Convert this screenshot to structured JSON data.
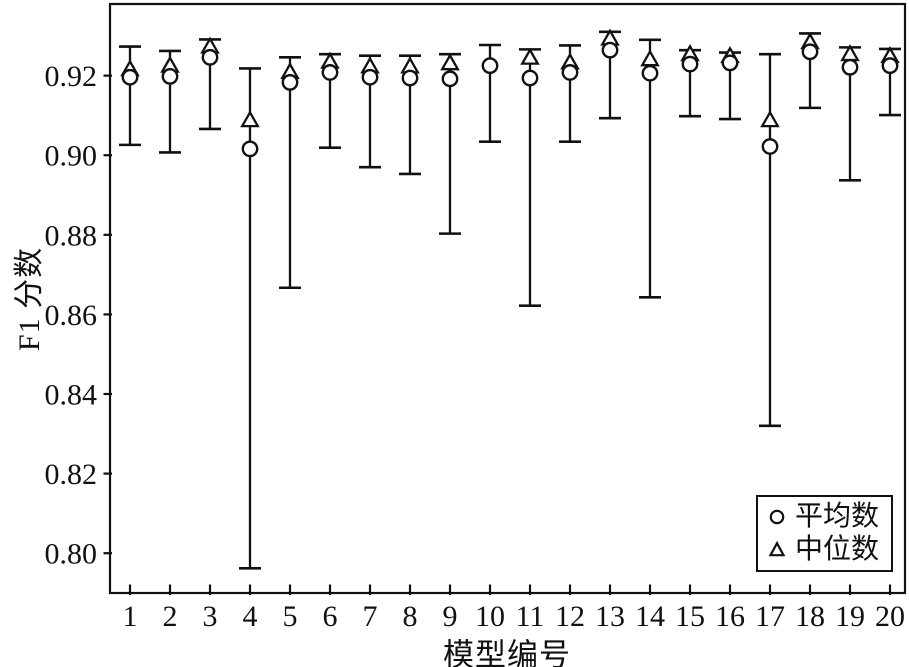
{
  "chart_data": {
    "type": "errorbar-scatter",
    "title": "",
    "xlabel": "模型编号",
    "ylabel": "F1 分数",
    "x": [
      1,
      2,
      3,
      4,
      5,
      6,
      7,
      8,
      9,
      10,
      11,
      12,
      13,
      14,
      15,
      16,
      17,
      18,
      19,
      20
    ],
    "xlim": [
      0.5,
      20.375
    ],
    "ylim": [
      0.79,
      0.938
    ],
    "yticks": [
      0.8,
      0.82,
      0.84,
      0.86,
      0.88,
      0.9,
      0.92
    ],
    "grid": false,
    "legend_position": "lower right",
    "stroke_color": "#111111",
    "background_color": "#ffffff",
    "series": [
      {
        "name": "平均数",
        "marker": "circle",
        "values": [
          0.9196,
          0.9198,
          0.9246,
          0.9016,
          0.9183,
          0.9208,
          0.9196,
          0.9194,
          0.9192,
          0.9225,
          0.9194,
          0.9208,
          0.9264,
          0.9206,
          0.9229,
          0.9232,
          0.9022,
          0.926,
          0.9221,
          0.9225
        ]
      },
      {
        "name": "中位数",
        "marker": "triangle",
        "values": [
          0.9213,
          0.9222,
          0.927,
          0.9085,
          0.9206,
          0.9232,
          0.922,
          0.922,
          0.9228,
          0.9225,
          0.9242,
          0.923,
          0.929,
          0.9238,
          0.9251,
          0.9246,
          0.9085,
          0.9281,
          0.9251,
          0.9246
        ]
      }
    ],
    "whisker_high": [
      0.9273,
      0.9262,
      0.9291,
      0.9218,
      0.9246,
      0.9254,
      0.925,
      0.925,
      0.9254,
      0.9277,
      0.9266,
      0.9276,
      0.931,
      0.929,
      0.9264,
      0.9258,
      0.9254,
      0.9306,
      0.9271,
      0.9267
    ],
    "whisker_low": [
      0.9026,
      0.9007,
      0.9066,
      0.7962,
      0.8667,
      0.9019,
      0.897,
      0.8953,
      0.8803,
      0.9034,
      0.8622,
      0.9034,
      0.9093,
      0.8643,
      0.9098,
      0.9091,
      0.832,
      0.9119,
      0.8937,
      0.9101
    ]
  },
  "legend": {
    "items": [
      {
        "label": "平均数",
        "marker": "circle"
      },
      {
        "label": "中位数",
        "marker": "triangle"
      }
    ]
  }
}
